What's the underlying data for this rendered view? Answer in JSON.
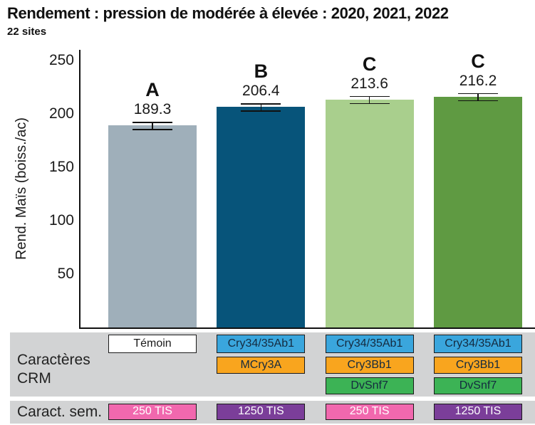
{
  "header": {
    "title": "Rendement : pression de modérée à élevée : 2020, 2021, 2022",
    "subtitle": "22 sites"
  },
  "chart_data": {
    "type": "bar",
    "title": "Rendement : pression de modérée à élevée : 2020, 2021, 2022",
    "subtitle": "22 sites",
    "ylabel": "Rend. Maïs (boiss./ac)",
    "yticks": [
      50,
      100,
      150,
      200,
      250
    ],
    "ylim": [
      0,
      260
    ],
    "grid": false,
    "legend": "none",
    "categories": [
      "Témoin / 250 TIS",
      "Cry34/35Ab1 + MCry3A / 1250 TIS",
      "Cry34/35Ab1 + Cry3Bb1 + DvSnf7 / 250 TIS",
      "Cry34/35Ab1 + Cry3Bb1 + DvSnf7 / 1250 TIS"
    ],
    "values": [
      189.3,
      206.4,
      213.6,
      216.2
    ],
    "value_labels": [
      "189.3",
      "206.4",
      "213.6",
      "216.2"
    ],
    "significance_letters": [
      "A",
      "B",
      "C",
      "C"
    ],
    "bar_colors": [
      "#9fafba",
      "#07547a",
      "#a9cf8d",
      "#5f9a42"
    ],
    "error_bar_units": 3.3
  },
  "table": {
    "crm_row": {
      "label_line1": "Caractères",
      "label_line2": "CRM",
      "columns": [
        [
          {
            "text": "Témoin",
            "bg": "#ffffff",
            "fg": "#1a1a1a"
          }
        ],
        [
          {
            "text": "Cry34/35Ab1",
            "bg": "#3aa6dd",
            "fg": "#142a3f"
          },
          {
            "text": "MCry3A",
            "bg": "#f9a51e",
            "fg": "#142a3f"
          }
        ],
        [
          {
            "text": "Cry34/35Ab1",
            "bg": "#3aa6dd",
            "fg": "#142a3f"
          },
          {
            "text": "Cry3Bb1",
            "bg": "#f9a51e",
            "fg": "#142a3f"
          },
          {
            "text": "DvSnf7",
            "bg": "#3cb355",
            "fg": "#142a3f"
          }
        ],
        [
          {
            "text": "Cry34/35Ab1",
            "bg": "#3aa6dd",
            "fg": "#142a3f"
          },
          {
            "text": "Cry3Bb1",
            "bg": "#f9a51e",
            "fg": "#142a3f"
          },
          {
            "text": "DvSnf7",
            "bg": "#3cb355",
            "fg": "#142a3f"
          }
        ]
      ]
    },
    "sem_row": {
      "label": "Caract. sem.",
      "columns": [
        {
          "text": "250 TIS",
          "bg": "#f168ae",
          "fg": "#ffffff"
        },
        {
          "text": "1250 TIS",
          "bg": "#7b3e99",
          "fg": "#ffffff"
        },
        {
          "text": "250 TIS",
          "bg": "#f168ae",
          "fg": "#ffffff"
        },
        {
          "text": "1250 TIS",
          "bg": "#7b3e99",
          "fg": "#ffffff"
        }
      ]
    }
  }
}
